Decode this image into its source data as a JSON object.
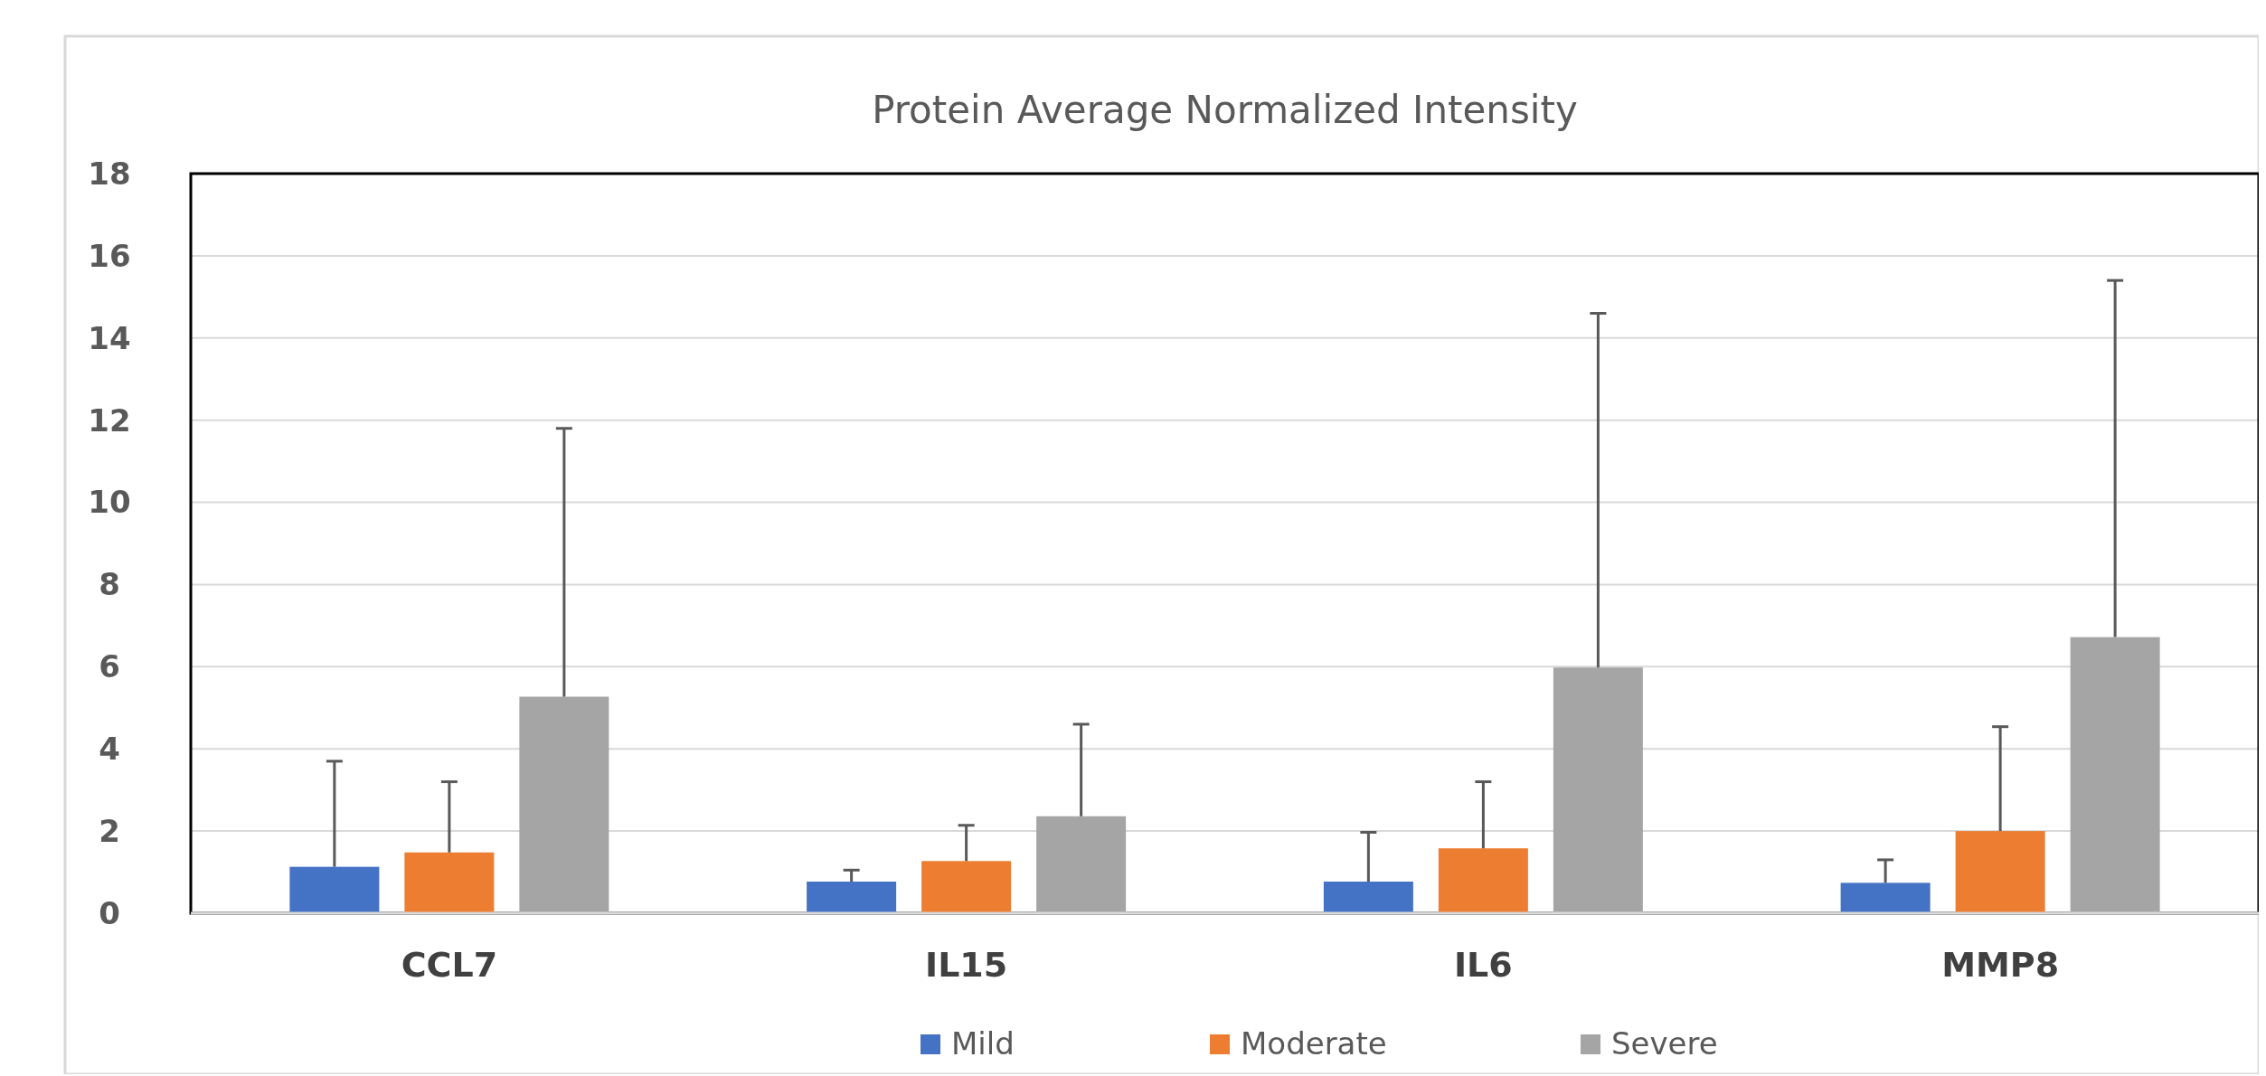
{
  "chart_data": {
    "type": "bar",
    "title": "Protein Average Normalized Intensity",
    "categories": [
      "CCL7",
      "IL15",
      "IL6",
      "MMP8"
    ],
    "series": [
      {
        "name": "Mild",
        "color": "#4472c4",
        "values": [
          1.13,
          0.77,
          0.77,
          0.74
        ],
        "errors": [
          [
            1.13,
            3.7
          ],
          [
            0.77,
            1.05
          ],
          [
            0.77,
            1.97
          ],
          [
            0.74,
            1.3
          ]
        ]
      },
      {
        "name": "Moderate",
        "color": "#ed7d31",
        "values": [
          1.48,
          1.27,
          1.58,
          2.0
        ],
        "errors": [
          [
            1.48,
            3.2
          ],
          [
            1.27,
            2.14
          ],
          [
            1.58,
            3.2
          ],
          [
            2.0,
            4.54
          ]
        ]
      },
      {
        "name": "Severe",
        "color": "#a5a5a5",
        "values": [
          5.27,
          2.36,
          5.98,
          6.72
        ],
        "errors": [
          [
            5.27,
            11.8
          ],
          [
            2.36,
            4.6
          ],
          [
            5.98,
            14.6
          ],
          [
            6.72,
            15.4
          ]
        ]
      }
    ],
    "ylim": [
      0,
      18
    ],
    "yticks": [
      0,
      2,
      4,
      6,
      8,
      10,
      12,
      14,
      16,
      18
    ],
    "grid": "y",
    "legend": "bottom"
  }
}
